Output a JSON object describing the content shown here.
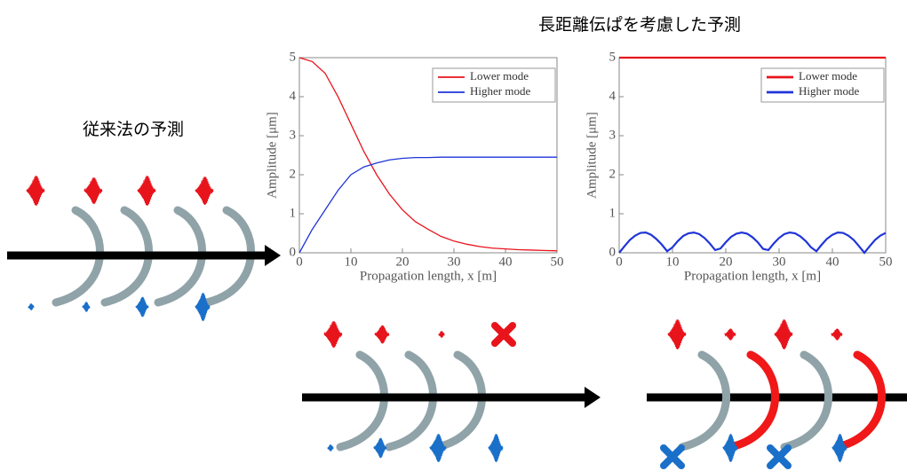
{
  "title": "長距離伝ぱを考慮した予測",
  "left_label": "従来法の予測",
  "chart_data": [
    {
      "type": "line",
      "ylabel": "Amplitude [μm]",
      "xlabel": "Propagation length, x [m]",
      "xlim": [
        0,
        50
      ],
      "ylim": [
        0,
        5
      ],
      "xticks": [
        0,
        10,
        20,
        30,
        40,
        50
      ],
      "yticks": [
        0,
        1,
        2,
        3,
        4,
        5
      ],
      "legend": "upper right",
      "x": [
        0,
        2.5,
        5,
        7.5,
        10,
        12.5,
        15,
        17.5,
        20,
        22.5,
        25,
        27.5,
        30,
        32.5,
        35,
        37.5,
        40,
        42.5,
        45,
        47.5,
        50
      ],
      "series": [
        {
          "name": "Lower mode",
          "color": "#e8141c",
          "values": [
            5,
            4.9,
            4.6,
            4.0,
            3.3,
            2.6,
            2.0,
            1.5,
            1.1,
            0.8,
            0.6,
            0.42,
            0.3,
            0.22,
            0.16,
            0.12,
            0.1,
            0.08,
            0.07,
            0.06,
            0.05
          ]
        },
        {
          "name": "Higher mode",
          "color": "#1f35d8",
          "values": [
            0,
            0.6,
            1.1,
            1.6,
            2.0,
            2.2,
            2.3,
            2.38,
            2.42,
            2.44,
            2.44,
            2.45,
            2.45,
            2.45,
            2.45,
            2.45,
            2.45,
            2.45,
            2.45,
            2.45,
            2.45
          ]
        }
      ]
    },
    {
      "type": "line",
      "ylabel": "Amplitude [μm]",
      "xlabel": "Propagation length, x [m]",
      "xlim": [
        0,
        50
      ],
      "ylim": [
        0,
        5
      ],
      "xticks": [
        0,
        10,
        20,
        30,
        40,
        50
      ],
      "yticks": [
        0,
        1,
        2,
        3,
        4,
        5
      ],
      "legend": "upper right",
      "x": [
        0,
        1,
        2,
        3,
        4,
        5,
        6,
        7,
        8,
        9,
        10,
        11,
        12,
        13,
        14,
        15,
        16,
        17,
        18,
        19,
        20,
        21,
        22,
        23,
        24,
        25,
        26,
        27,
        28,
        29,
        30,
        31,
        32,
        33,
        34,
        35,
        36,
        37,
        38,
        39,
        40,
        41,
        42,
        43,
        44,
        45,
        46,
        47,
        48,
        49,
        50
      ],
      "series": [
        {
          "name": "Lower mode",
          "color": "#e8141c",
          "values": [
            5,
            5,
            5,
            5,
            5,
            5,
            5,
            5,
            5,
            5,
            5,
            5,
            5,
            5,
            5,
            5,
            5,
            5,
            5,
            5,
            5,
            5,
            5,
            5,
            5,
            5,
            5,
            5,
            5,
            5,
            5,
            5,
            5,
            5,
            5,
            5,
            5,
            5,
            5,
            5,
            5,
            5,
            5,
            5,
            5,
            5,
            5,
            5,
            5,
            5,
            5
          ]
        },
        {
          "name": "Higher mode",
          "color": "#1f35d8",
          "values": [
            0,
            0.17,
            0.33,
            0.44,
            0.51,
            0.52,
            0.46,
            0.35,
            0.21,
            0.04,
            0.14,
            0.3,
            0.43,
            0.5,
            0.52,
            0.48,
            0.38,
            0.24,
            0.07,
            0.11,
            0.27,
            0.41,
            0.49,
            0.52,
            0.49,
            0.4,
            0.27,
            0.1,
            0.07,
            0.24,
            0.38,
            0.48,
            0.52,
            0.5,
            0.42,
            0.3,
            0.14,
            0.04,
            0.21,
            0.36,
            0.46,
            0.52,
            0.51,
            0.44,
            0.33,
            0.17,
            0,
            0.17,
            0.33,
            0.44,
            0.51
          ]
        }
      ]
    }
  ]
}
